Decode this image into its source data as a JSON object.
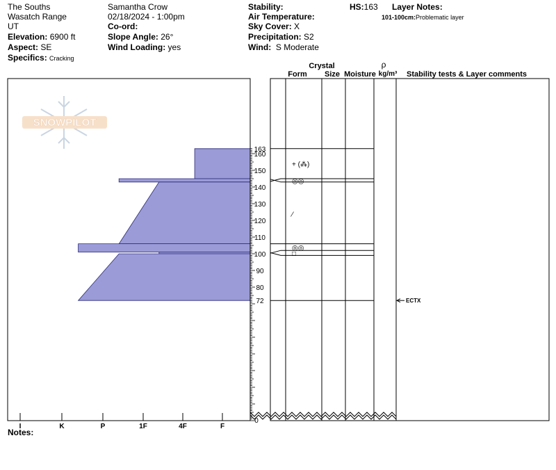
{
  "header": {
    "location": [
      "The Souths",
      "Wasatch Range",
      "UT"
    ],
    "elevation_label": "Elevation:",
    "elevation_value": "6900 ft",
    "aspect_label": "Aspect:",
    "aspect_value": "SE",
    "specifics_label": "Specifics:",
    "specifics_value": "Cracking",
    "observer": "Samantha Crow",
    "datetime": "02/18/2024 - 1:00pm",
    "coord_label": "Co-ord:",
    "slope_label": "Slope Angle:",
    "slope_value": "26°",
    "wind_loading_label": "Wind Loading:",
    "wind_loading_value": "yes",
    "stability_label": "Stability:",
    "air_temp_label": "Air Temperature:",
    "sky_label": "Sky Cover:",
    "sky_value": "X",
    "precip_label": "Precipitation:",
    "precip_value": "S2",
    "wind_label": "Wind:",
    "wind_value": "S Moderate",
    "hs_label": "HS:",
    "hs_value": "163",
    "layer_notes_label": "Layer Notes:",
    "layer_note_range": "101-100cm:",
    "layer_note_text": "Problematic layer"
  },
  "logo_text": "SNOWPILOT",
  "notes_label": "Notes:",
  "columns": {
    "crystal": "Crystal",
    "form": "Form",
    "size": "Size",
    "moisture": "Moisture",
    "rho": "ρ",
    "density_unit": "kg/m³",
    "comments": "Stability tests & Layer comments"
  },
  "colors": {
    "hardness_fill": "#9b9bd8",
    "hardness_stroke": "#2a2a7a"
  },
  "chart_data": {
    "type": "area",
    "title": "",
    "x_axis": {
      "labels": [
        "I",
        "K",
        "P",
        "1F",
        "4F",
        "F"
      ],
      "values": [
        5,
        4,
        3,
        2,
        1,
        0
      ]
    },
    "y_axis": {
      "min": 0,
      "max": 163,
      "unit": "cm",
      "ticks": [
        160,
        150,
        140,
        130,
        120,
        110,
        100,
        90,
        80
      ],
      "extra_labels": [
        "163",
        "72",
        "0"
      ]
    },
    "hardness_layers": [
      {
        "top": 163,
        "bottom": 145,
        "top_hardness": 0.7,
        "bottom_hardness": 0.7
      },
      {
        "top": 145,
        "bottom": 143,
        "top_hardness": 2.6,
        "bottom_hardness": 2.6
      },
      {
        "top": 143,
        "bottom": 106,
        "top_hardness": 1.6,
        "bottom_hardness": 2.6
      },
      {
        "top": 106,
        "bottom": 101,
        "top_hardness": 3.6,
        "bottom_hardness": 3.6
      },
      {
        "top": 101,
        "bottom": 100,
        "top_hardness": 1.6,
        "bottom_hardness": 1.6
      },
      {
        "top": 100,
        "bottom": 72,
        "top_hardness": 2.6,
        "bottom_hardness": 3.6
      }
    ],
    "layer_boundaries": [
      163,
      145,
      143,
      106,
      102,
      99,
      72
    ],
    "connector_boundaries": [
      145,
      143,
      102,
      99
    ],
    "grain_forms": [
      {
        "depth": 154,
        "symbol": "+ (⁂)"
      },
      {
        "depth": 144,
        "symbol": "◎◎"
      },
      {
        "depth": 124,
        "symbol": "⁄"
      },
      {
        "depth": 104,
        "symbol": "◎◎"
      },
      {
        "depth": 100.5,
        "symbol": "□"
      }
    ],
    "stability_tests": [
      {
        "depth": 72,
        "label": "ECTX"
      }
    ]
  }
}
